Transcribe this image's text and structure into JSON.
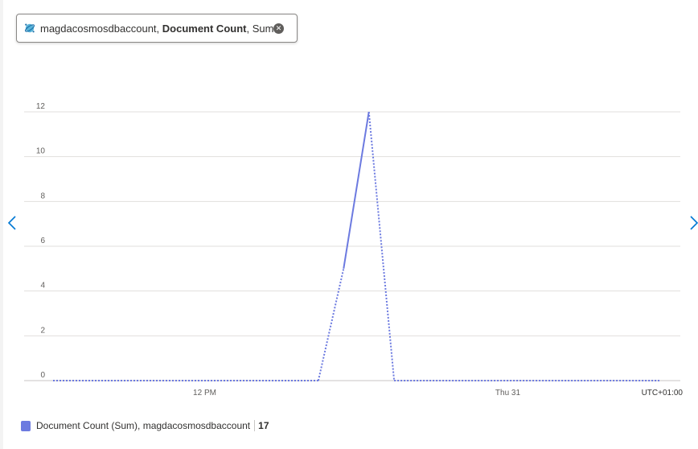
{
  "metric_pill": {
    "resource": "magdacosmosdbaccount",
    "separator1": ", ",
    "metric": "Document Count",
    "separator2": ", ",
    "aggregation": "Sum",
    "resource_icon": "cosmos-db-icon",
    "close_icon": "close-icon",
    "close_glyph": "✕"
  },
  "navigation": {
    "left_icon": "chevron-left-icon",
    "right_icon": "chevron-right-icon"
  },
  "chart_data": {
    "type": "line",
    "title": "",
    "xlabel": "",
    "ylabel": "",
    "ylim": [
      0,
      12
    ],
    "xlim": [
      "2021-03-30T06:00",
      "2021-03-31T06:00"
    ],
    "y_ticks": [
      {
        "value": 0,
        "label": "0"
      },
      {
        "value": 2,
        "label": "2"
      },
      {
        "value": 4,
        "label": "4"
      },
      {
        "value": 6,
        "label": "6"
      },
      {
        "value": 8,
        "label": "8"
      },
      {
        "value": 10,
        "label": "10"
      },
      {
        "value": 12,
        "label": "12"
      }
    ],
    "x_ticks": [
      {
        "value": "2021-03-30T12:00",
        "label": "12 PM"
      },
      {
        "value": "2021-03-31T00:00",
        "label": "Thu 31"
      }
    ],
    "timezone_label": "UTC+01:00",
    "grid": true,
    "series": [
      {
        "name": "Document Count (Sum), magdacosmosdbaccount",
        "color": "#6c7ae0",
        "points": [
          {
            "x": "2021-03-30T06:00",
            "y": 0
          },
          {
            "x": "2021-03-30T16:30",
            "y": 0
          },
          {
            "x": "2021-03-30T17:30",
            "y": 5
          },
          {
            "x": "2021-03-30T18:30",
            "y": 12
          },
          {
            "x": "2021-03-30T19:30",
            "y": 0
          },
          {
            "x": "2021-03-31T06:00",
            "y": 0
          }
        ],
        "solid_segments": [
          [
            2,
            3
          ]
        ]
      }
    ]
  },
  "legend": {
    "items": [
      {
        "label": "Document Count (Sum), magdacosmosdbaccount",
        "total": "17",
        "color": "#6c7ae0"
      }
    ]
  }
}
